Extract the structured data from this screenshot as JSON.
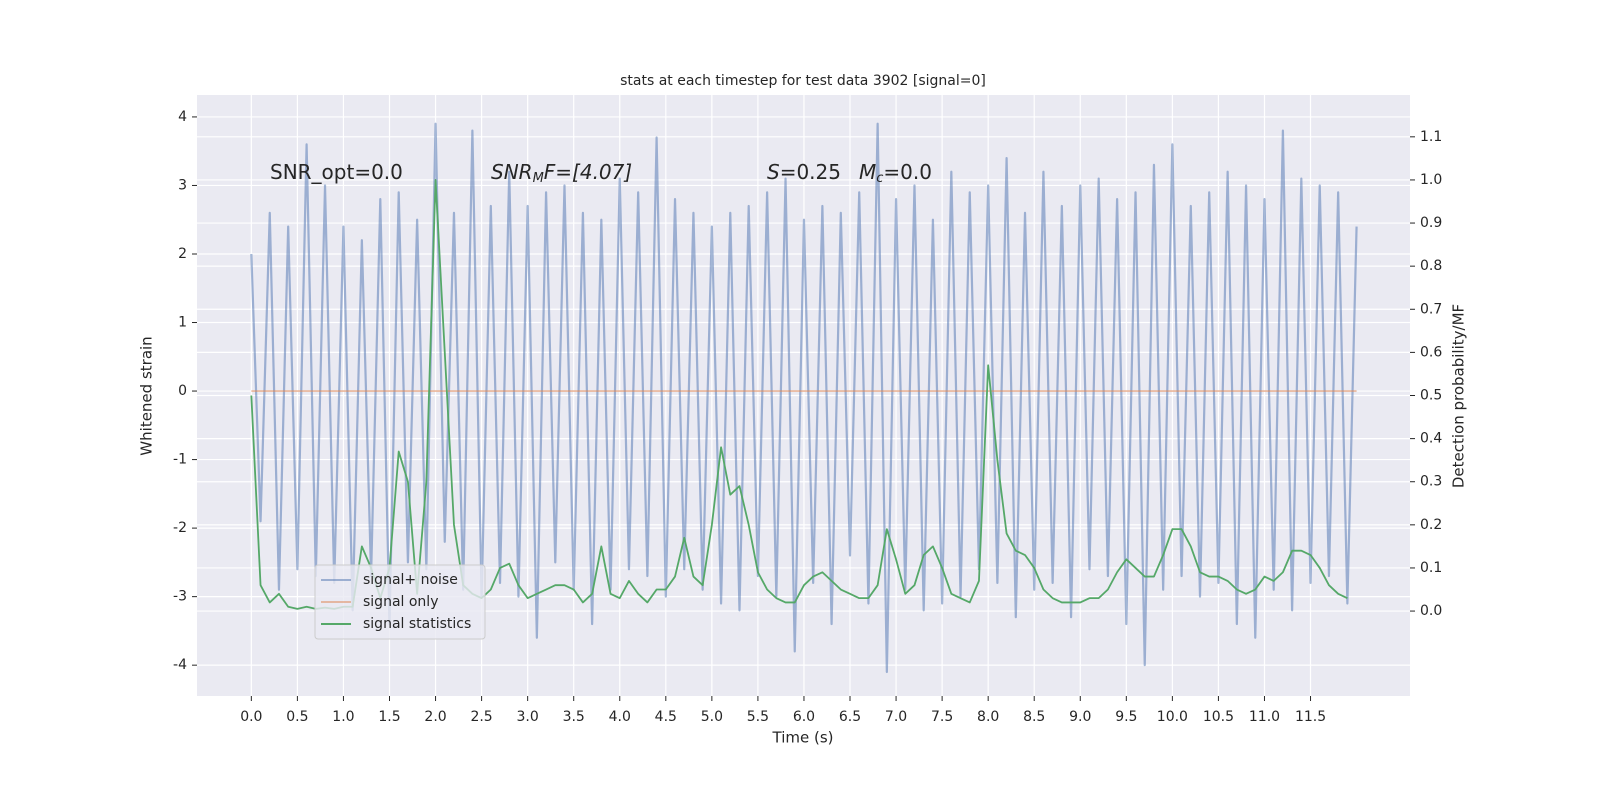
{
  "chart_data": {
    "type": "line",
    "title": "stats at each timestep for test data 3902 [signal=0]",
    "xlabel": "Time (s)",
    "ylabel": "Whitened strain",
    "y2label": "Detection probability/MF",
    "annotations": [
      [
        "SNR_opt=0.0"
      ],
      [
        "SNR",
        "M",
        "F=[4.07]"
      ],
      [
        "S",
        "=0.25"
      ],
      [
        "M",
        "c",
        "=0.0"
      ]
    ],
    "xlim": [
      -0.59,
      12.58
    ],
    "ylim": [
      -4.45,
      4.32
    ],
    "y2lim": [
      -0.197,
      1.197
    ],
    "xticks": [
      {
        "value": 0,
        "label": "0.0"
      },
      0.5,
      {
        "value": 1,
        "label": "1.0"
      },
      1.5,
      {
        "value": 2,
        "label": "2.0"
      },
      2.5,
      {
        "value": 3,
        "label": "3.0"
      },
      3.5,
      {
        "value": 4,
        "label": "4.0"
      },
      4.5,
      {
        "value": 5,
        "label": "5.0"
      },
      5.5,
      {
        "value": 6,
        "label": "6.0"
      },
      6.5,
      {
        "value": 7,
        "label": "7.0"
      },
      7.5,
      {
        "value": 8,
        "label": "8.0"
      },
      8.5,
      {
        "value": 9,
        "label": "9.0"
      },
      9.5,
      {
        "value": 10,
        "label": "10.0"
      },
      10.5,
      {
        "value": 11,
        "label": "11.0"
      },
      11.5
    ],
    "yticks": [
      -4,
      -3,
      -2,
      -1,
      0,
      1,
      2,
      3,
      4
    ],
    "y2ticks": [
      {
        "value": 0,
        "label": "0.0"
      },
      0.1,
      0.2,
      0.3,
      0.4,
      0.5,
      0.6,
      0.7,
      0.8,
      0.9,
      {
        "value": 1,
        "label": "1.0"
      },
      1.1
    ],
    "grid": true,
    "legend": "lower left",
    "series": [
      {
        "name": "signal+ noise",
        "color": "#4c72b0",
        "opacity": 0.5,
        "x": [
          0.0,
          0.1,
          0.2,
          0.3,
          0.4,
          0.5,
          0.6,
          0.7,
          0.8,
          0.9,
          1.0,
          1.1,
          1.2,
          1.3,
          1.4,
          1.5,
          1.6,
          1.7,
          1.8,
          1.9,
          2.0,
          2.1,
          2.2,
          2.3,
          2.4,
          2.5,
          2.6,
          2.7,
          2.8,
          2.9,
          3.0,
          3.1,
          3.2,
          3.3,
          3.4,
          3.5,
          3.6,
          3.7,
          3.8,
          3.9,
          4.0,
          4.1,
          4.2,
          4.3,
          4.4,
          4.5,
          4.6,
          4.7,
          4.8,
          4.9,
          5.0,
          5.1,
          5.2,
          5.3,
          5.4,
          5.5,
          5.6,
          5.7,
          5.8,
          5.9,
          6.0,
          6.1,
          6.2,
          6.3,
          6.4,
          6.5,
          6.6,
          6.7,
          6.8,
          6.9,
          7.0,
          7.1,
          7.2,
          7.3,
          7.4,
          7.5,
          7.6,
          7.7,
          7.8,
          7.9,
          8.0,
          8.1,
          8.2,
          8.3,
          8.4,
          8.5,
          8.6,
          8.7,
          8.8,
          8.9,
          9.0,
          9.1,
          9.2,
          9.3,
          9.4,
          9.5,
          9.6,
          9.7,
          9.8,
          9.9,
          10.0,
          10.1,
          10.2,
          10.3,
          10.4,
          10.5,
          10.6,
          10.7,
          10.8,
          10.9,
          11.0,
          11.1,
          11.2,
          11.3,
          11.4,
          11.5,
          11.6,
          11.7,
          11.8,
          11.9,
          12.0
        ],
        "values": [
          2.0,
          -1.9,
          2.6,
          -2.9,
          2.4,
          -2.6,
          3.6,
          -2.7,
          3.0,
          -2.8,
          2.4,
          -3.2,
          2.2,
          -2.7,
          2.8,
          -3.4,
          2.9,
          -2.5,
          2.5,
          -2.6,
          3.9,
          -2.2,
          2.6,
          -2.9,
          3.8,
          -3.0,
          2.7,
          -2.8,
          3.2,
          -3.0,
          2.7,
          -3.6,
          2.9,
          -2.5,
          3.0,
          -2.9,
          2.6,
          -3.4,
          2.5,
          -2.9,
          3.1,
          -2.6,
          2.9,
          -2.7,
          3.7,
          -3.0,
          2.8,
          -2.6,
          2.6,
          -2.9,
          2.4,
          -3.1,
          2.6,
          -3.2,
          2.7,
          -2.7,
          2.9,
          -3.0,
          3.1,
          -3.8,
          2.5,
          -2.8,
          2.7,
          -3.4,
          2.6,
          -2.4,
          2.9,
          -3.1,
          3.9,
          -4.1,
          2.8,
          -2.9,
          3.0,
          -3.2,
          2.5,
          -3.1,
          3.2,
          -3.0,
          2.9,
          -2.6,
          3.0,
          -2.8,
          3.4,
          -3.3,
          2.6,
          -2.9,
          3.2,
          -2.8,
          2.7,
          -3.3,
          3.0,
          -2.6,
          3.1,
          -2.7,
          2.8,
          -3.4,
          2.9,
          -4.0,
          3.3,
          -2.9,
          3.6,
          -2.7,
          2.7,
          -3.0,
          2.9,
          -2.8,
          3.2,
          -3.4,
          3.0,
          -3.6,
          2.8,
          -2.9,
          3.8,
          -3.2,
          3.1,
          -2.8,
          3.0,
          -2.7,
          2.9,
          -3.1,
          2.4
        ]
      },
      {
        "name": "signal only",
        "color": "#dd8452",
        "opacity": 0.5,
        "x": [
          0.0,
          12.0
        ],
        "values": [
          0,
          0
        ]
      },
      {
        "name": "signal statistics",
        "color": "#55a868",
        "opacity": 1,
        "axis": "y2",
        "x": [
          0.0,
          0.1,
          0.2,
          0.3,
          0.4,
          0.5,
          0.6,
          0.7,
          0.8,
          0.9,
          1.0,
          1.1,
          1.2,
          1.3,
          1.4,
          1.5,
          1.6,
          1.7,
          1.8,
          1.9,
          2.0,
          2.1,
          2.2,
          2.3,
          2.4,
          2.5,
          2.6,
          2.7,
          2.8,
          2.9,
          3.0,
          3.1,
          3.2,
          3.3,
          3.4,
          3.5,
          3.6,
          3.7,
          3.8,
          3.9,
          4.0,
          4.1,
          4.2,
          4.3,
          4.4,
          4.5,
          4.6,
          4.7,
          4.8,
          4.9,
          5.0,
          5.1,
          5.2,
          5.3,
          5.4,
          5.5,
          5.6,
          5.7,
          5.8,
          5.9,
          6.0,
          6.1,
          6.2,
          6.3,
          6.4,
          6.5,
          6.6,
          6.7,
          6.8,
          6.9,
          7.0,
          7.1,
          7.2,
          7.3,
          7.4,
          7.5,
          7.6,
          7.7,
          7.8,
          7.9,
          8.0,
          8.1,
          8.2,
          8.3,
          8.4,
          8.5,
          8.6,
          8.7,
          8.8,
          8.9,
          9.0,
          9.1,
          9.2,
          9.3,
          9.4,
          9.5,
          9.6,
          9.7,
          9.8,
          9.9,
          10.0,
          10.1,
          10.2,
          10.3,
          10.4,
          10.5,
          10.6,
          10.7,
          10.8,
          10.9,
          11.0,
          11.1,
          11.2,
          11.3,
          11.4,
          11.5,
          11.6,
          11.7,
          11.8,
          11.9
        ],
        "values": [
          0.5,
          0.06,
          0.02,
          0.04,
          0.01,
          0.005,
          0.01,
          0.005,
          0.008,
          0.005,
          0.01,
          0.01,
          0.15,
          0.1,
          0.03,
          0.1,
          0.37,
          0.3,
          0.04,
          0.3,
          1.0,
          0.6,
          0.2,
          0.06,
          0.04,
          0.03,
          0.05,
          0.1,
          0.11,
          0.06,
          0.03,
          0.04,
          0.05,
          0.06,
          0.06,
          0.05,
          0.02,
          0.04,
          0.15,
          0.04,
          0.03,
          0.07,
          0.04,
          0.02,
          0.05,
          0.05,
          0.08,
          0.17,
          0.08,
          0.06,
          0.2,
          0.38,
          0.27,
          0.29,
          0.2,
          0.09,
          0.05,
          0.03,
          0.02,
          0.02,
          0.06,
          0.08,
          0.09,
          0.07,
          0.05,
          0.04,
          0.03,
          0.03,
          0.06,
          0.19,
          0.12,
          0.04,
          0.06,
          0.13,
          0.15,
          0.1,
          0.04,
          0.03,
          0.02,
          0.07,
          0.57,
          0.35,
          0.18,
          0.14,
          0.13,
          0.1,
          0.05,
          0.03,
          0.02,
          0.02,
          0.02,
          0.03,
          0.03,
          0.05,
          0.09,
          0.12,
          0.1,
          0.08,
          0.08,
          0.13,
          0.19,
          0.19,
          0.15,
          0.09,
          0.08,
          0.08,
          0.07,
          0.05,
          0.04,
          0.05,
          0.08,
          0.07,
          0.09,
          0.14,
          0.14,
          0.13,
          0.1,
          0.06,
          0.04,
          0.03
        ]
      }
    ]
  }
}
